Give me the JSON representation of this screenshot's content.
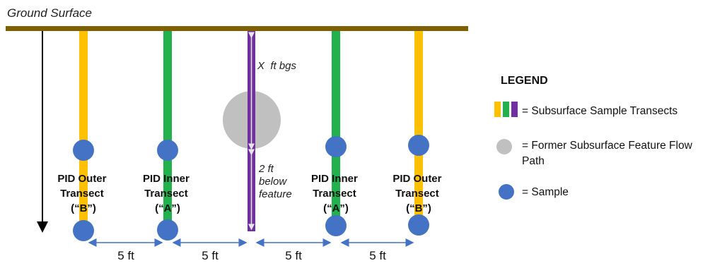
{
  "surface_label": "Ground Surface",
  "depth_label": "X  ft bgs",
  "below_label": [
    "2 ft",
    "below",
    "feature"
  ],
  "transects": [
    {
      "label": [
        "PID Outer",
        "Transect",
        "(“B”)"
      ],
      "color": "#FFC000"
    },
    {
      "label": [
        "PID Inner",
        "Transect",
        "(“A”)"
      ],
      "color": "#22B14C"
    },
    {
      "label": [
        "PID Inner",
        "Transect",
        "(“A”)"
      ],
      "color": "#22B14C"
    },
    {
      "label": [
        "PID Outer",
        "Transect",
        "(“B”)"
      ],
      "color": "#FFC000"
    }
  ],
  "center_line_color": "#7030A0",
  "spacing_labels": [
    "5 ft",
    "5 ft",
    "5 ft",
    "5 ft"
  ],
  "legend": {
    "title": "LEGEND",
    "transects": "= Subsurface Sample Transects",
    "feature": [
      "= Former Subsurface Feature Flow",
      "Path"
    ],
    "sample": "= Sample"
  },
  "colors": {
    "ground": "#7F6000",
    "sample": "#4472C4",
    "feature": "#C0C0C0",
    "arrow": "#4472C4"
  }
}
